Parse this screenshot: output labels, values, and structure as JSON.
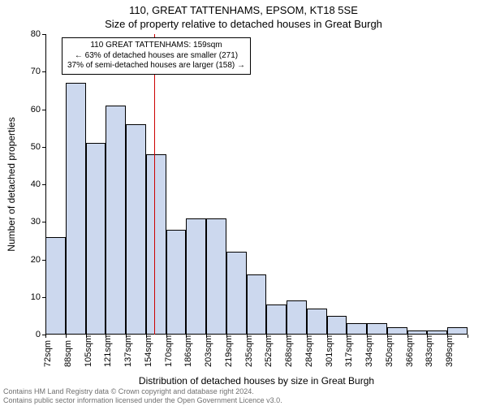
{
  "title_main": "110, GREAT TATTENHAMS, EPSOM, KT18 5SE",
  "title_sub": "Size of property relative to detached houses in Great Burgh",
  "ylabel": "Number of detached properties",
  "xlabel": "Distribution of detached houses by size in Great Burgh",
  "chart": {
    "type": "histogram",
    "bar_fill": "#ccd8ee",
    "bar_stroke": "#000000",
    "background": "#ffffff",
    "axis_color": "#000000",
    "marker_color": "#cc0000",
    "ylim_min": 0,
    "ylim_max": 80,
    "ytick_step": 10,
    "x_labels": [
      "72sqm",
      "88sqm",
      "105sqm",
      "121sqm",
      "137sqm",
      "154sqm",
      "170sqm",
      "186sqm",
      "203sqm",
      "219sqm",
      "235sqm",
      "252sqm",
      "268sqm",
      "284sqm",
      "301sqm",
      "317sqm",
      "334sqm",
      "350sqm",
      "366sqm",
      "383sqm",
      "399sqm"
    ],
    "values": [
      26,
      67,
      51,
      61,
      56,
      48,
      28,
      31,
      31,
      22,
      16,
      8,
      9,
      7,
      5,
      3,
      3,
      2,
      1,
      1,
      2
    ],
    "marker_value_sqm": 159,
    "x_domain_min": 72,
    "x_domain_max": 410
  },
  "annotation": {
    "line1": "110 GREAT TATTENHAMS: 159sqm",
    "line2": "← 63% of detached houses are smaller (271)",
    "line3": "37% of semi-detached houses are larger (158) →"
  },
  "footer": "Contains HM Land Registry data © Crown copyright and database right 2024.\nContains public sector information licensed under the Open Government Licence v3.0."
}
